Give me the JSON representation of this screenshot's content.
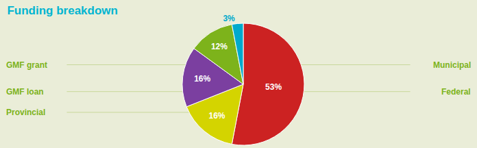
{
  "chart_data": {
    "type": "pie",
    "title": "Funding breakdown",
    "values": [
      53,
      16,
      16,
      12,
      3
    ],
    "value_labels": [
      "53%",
      "16%",
      "16%",
      "12%",
      "3%"
    ],
    "colors": [
      "#cc2222",
      "#d4d400",
      "#7b3fa0",
      "#7db31b",
      "#00aacc"
    ],
    "data_labels": true,
    "annotations": [
      "GMF grant",
      "GMF loan",
      "Provincial",
      "Municipal",
      "Federal"
    ]
  }
}
